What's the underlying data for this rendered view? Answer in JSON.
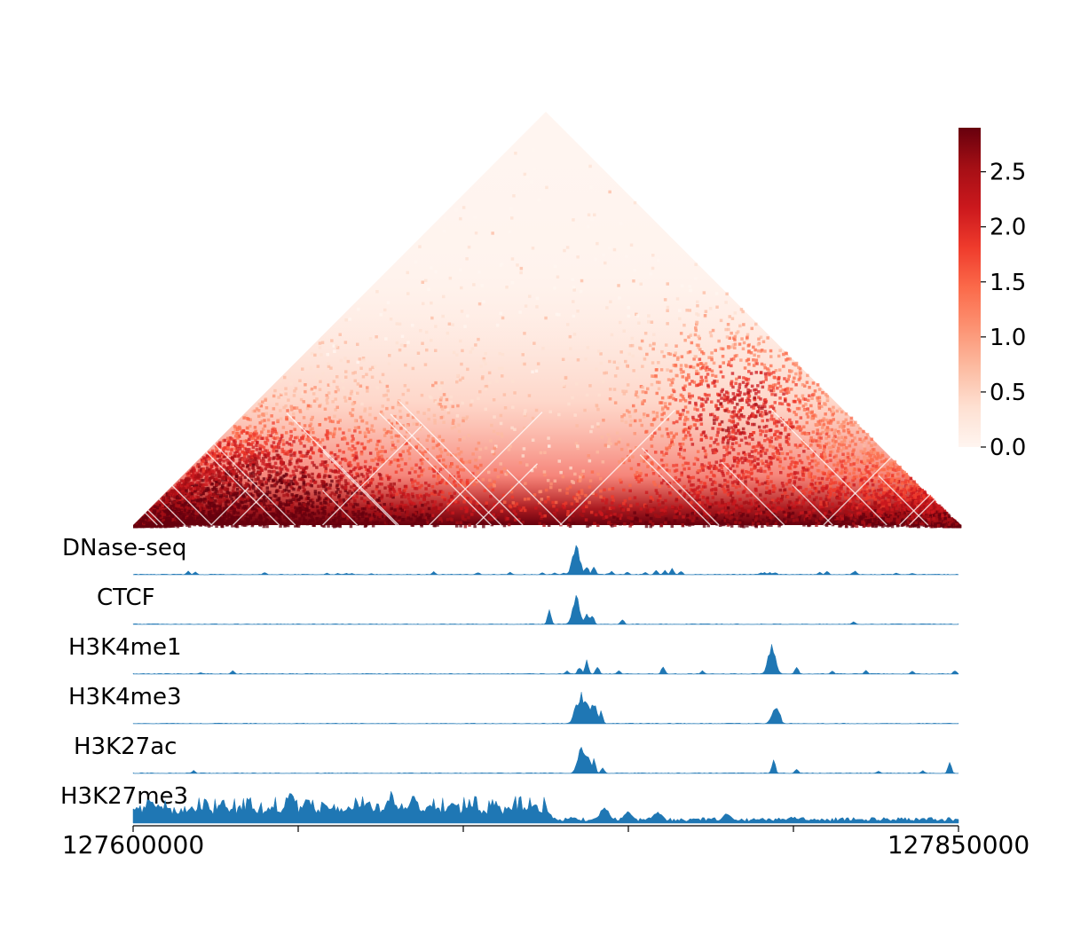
{
  "chart_data": [
    {
      "type": "heatmap",
      "shape": "triangle",
      "colormap": "Reds",
      "colorbar": {
        "min": 0.0,
        "max": 2.9,
        "ticks": [
          "0.0",
          "0.5",
          "1.0",
          "1.5",
          "2.0",
          "2.5"
        ]
      },
      "colors": [
        "#fff5f0",
        "#fee0d2",
        "#fcbba1",
        "#fc9272",
        "#fb6a4a",
        "#ef3b2c",
        "#cb181d",
        "#a50f15",
        "#67000d"
      ]
    },
    {
      "type": "area",
      "track_color": "#1f77b4",
      "x_range": [
        127600000,
        127850000
      ],
      "x_tick_labels": [
        "127600000",
        "127850000"
      ],
      "series": [
        {
          "name": "DNase-seq",
          "peaks": [
            [
              127616500,
              0.12
            ],
            [
              127619000,
              0.1
            ],
            [
              127640000,
              0.08
            ],
            [
              127658500,
              0.06
            ],
            [
              127662000,
              0.05
            ],
            [
              127664500,
              0.05
            ],
            [
              127666500,
              0.05
            ],
            [
              127672000,
              0.04
            ],
            [
              127691000,
              0.1
            ],
            [
              127704500,
              0.08
            ],
            [
              127714000,
              0.08
            ],
            [
              127724000,
              0.08
            ],
            [
              127727500,
              0.06
            ],
            [
              127730500,
              0.06
            ],
            [
              127735000,
              0.08
            ],
            [
              127740000,
              0.06
            ],
            [
              127744000,
              0.05
            ],
            [
              127758500,
              0.15
            ],
            [
              127761000,
              0.15
            ],
            [
              127763500,
              0.2
            ],
            [
              127766000,
              0.12
            ],
            [
              127733000,
              0.08
            ],
            [
              127734500,
              0.1
            ],
            [
              127734000,
              1.0
            ],
            [
              127737500,
              0.3
            ],
            [
              127739500,
              0.25
            ],
            [
              127745000,
              0.12
            ],
            [
              127750000,
              0.1
            ],
            [
              127755000,
              0.08
            ],
            [
              127763000,
              0.08
            ],
            [
              127790000,
              0.08
            ],
            [
              127791500,
              0.08
            ],
            [
              127793000,
              0.08
            ],
            [
              127794500,
              0.08
            ],
            [
              127810000,
              0.12
            ],
            [
              127818500,
              0.12
            ],
            [
              127850000,
              0.0
            ],
            [
              127818000,
              0.0
            ],
            [
              127818000,
              0.08
            ],
            [
              127808000,
              0.08
            ],
            [
              127831000,
              0.06
            ],
            [
              127836000,
              0.06
            ]
          ]
        },
        {
          "name": "CTCF",
          "peaks": [
            [
              127726000,
              0.45
            ],
            [
              127734000,
              0.95
            ],
            [
              127737500,
              0.45
            ],
            [
              127739000,
              0.35
            ],
            [
              127748000,
              0.18
            ],
            [
              127818000,
              0.1
            ]
          ]
        },
        {
          "name": "H3K4me1",
          "peaks": [
            [
              127620500,
              0.06
            ],
            [
              127630000,
              0.12
            ],
            [
              127731500,
              0.1
            ],
            [
              127735500,
              0.25
            ],
            [
              127737500,
              0.45
            ],
            [
              127740500,
              0.25
            ],
            [
              127747000,
              0.12
            ],
            [
              127760500,
              0.25
            ],
            [
              127772500,
              0.12
            ],
            [
              127793500,
              0.95
            ],
            [
              127801000,
              0.25
            ],
            [
              127812000,
              0.12
            ],
            [
              127822000,
              0.12
            ],
            [
              127836000,
              0.12
            ],
            [
              127849000,
              0.12
            ]
          ]
        },
        {
          "name": "H3K4me3",
          "peaks": [
            [
              127734500,
              0.75
            ],
            [
              127736000,
              0.95
            ],
            [
              127737500,
              0.85
            ],
            [
              127739500,
              0.7
            ],
            [
              127741500,
              0.4
            ],
            [
              127794500,
              0.55
            ],
            [
              127795500,
              0.45
            ]
          ]
        },
        {
          "name": "H3K27ac",
          "peaks": [
            [
              127618500,
              0.1
            ],
            [
              127734500,
              0.45
            ],
            [
              127736000,
              0.95
            ],
            [
              127737500,
              0.7
            ],
            [
              127739500,
              0.45
            ],
            [
              127742500,
              0.2
            ],
            [
              127794000,
              0.45
            ],
            [
              127801000,
              0.15
            ],
            [
              127826000,
              0.08
            ],
            [
              127839000,
              0.1
            ],
            [
              127847500,
              0.35
            ]
          ]
        },
        {
          "name": "H3K27me3",
          "peaks": [
            [
              127605000,
              0.75
            ],
            [
              127610000,
              0.55
            ],
            [
              127620000,
              0.35
            ],
            [
              127627000,
              0.75
            ],
            [
              127633000,
              0.45
            ],
            [
              127648000,
              0.95
            ],
            [
              127653000,
              0.85
            ],
            [
              127658000,
              0.55
            ],
            [
              127665000,
              0.45
            ],
            [
              127671000,
              0.75
            ],
            [
              127678000,
              0.95
            ],
            [
              127685000,
              0.85
            ],
            [
              127690000,
              0.65
            ],
            [
              127697000,
              0.7
            ],
            [
              127702000,
              0.65
            ],
            [
              127710000,
              0.7
            ],
            [
              127718000,
              0.5
            ],
            [
              127725000,
              0.45
            ],
            [
              127733000,
              0.2
            ],
            [
              127743000,
              0.5
            ],
            [
              127750000,
              0.35
            ],
            [
              127759000,
              0.35
            ],
            [
              127770000,
              0.15
            ],
            [
              127780000,
              0.3
            ],
            [
              127790000,
              0.15
            ],
            [
              127800000,
              0.2
            ],
            [
              127825000,
              0.1
            ],
            [
              127840000,
              0.1
            ]
          ]
        }
      ]
    }
  ]
}
